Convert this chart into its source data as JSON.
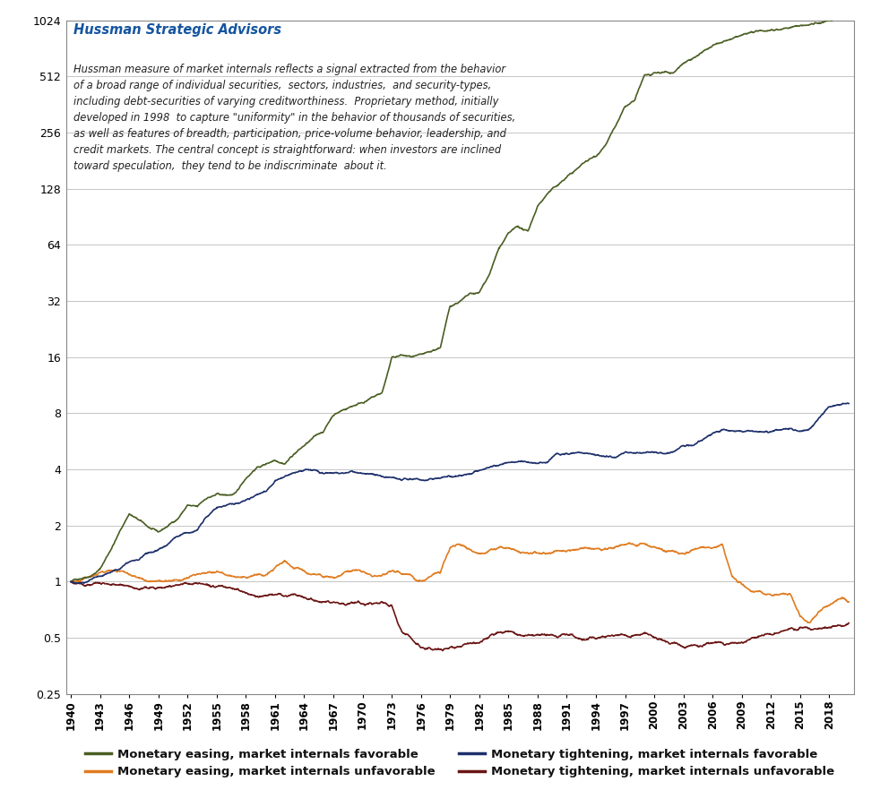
{
  "title": "Hussman Strategic Advisors",
  "annotation": "Hussman measure of market internals reflects a signal extracted from the behavior\nof a broad range of individual securities,  sectors, industries,  and security-types,\nincluding debt-securities of varying creditworthiness.  Proprietary method, initially\ndeveloped in 1998  to capture \"uniformity\" in the behavior of thousands of securities,\nas well as features of breadth, participation, price-volume behavior, leadership, and\ncredit markets. The central concept is straightforward: when investors are inclined\ntoward speculation,  they tend to be indiscriminate  about it.",
  "legend_labels": [
    "Monetary easing, market internals favorable",
    "Monetary easing, market internals unfavorable",
    "Monetary tightening, market internals favorable",
    "Monetary tightening, market internals unfavorable"
  ],
  "colors": [
    "#4A5E23",
    "#E07B20",
    "#1C2F6B",
    "#6B1515"
  ],
  "ylim": [
    0.25,
    1024
  ],
  "xlim": [
    1939.5,
    2020.5
  ],
  "yticks": [
    0.25,
    0.5,
    1,
    2,
    4,
    8,
    16,
    32,
    64,
    128,
    256,
    512,
    1024
  ],
  "ytick_labels": [
    "0.25",
    "0.5",
    "1",
    "2",
    "4",
    "8",
    "16",
    "32",
    "64",
    "128",
    "256",
    "512",
    "1024"
  ],
  "xtick_years": [
    1940,
    1943,
    1946,
    1949,
    1952,
    1955,
    1958,
    1961,
    1964,
    1967,
    1970,
    1973,
    1976,
    1979,
    1982,
    1985,
    1988,
    1991,
    1994,
    1997,
    2000,
    2003,
    2006,
    2009,
    2012,
    2015,
    2018
  ],
  "line_width": 1.2,
  "background_color": "#FFFFFF",
  "grid_color": "#BBBBBB",
  "title_color": "#1555A0",
  "annotation_color": "#222222"
}
